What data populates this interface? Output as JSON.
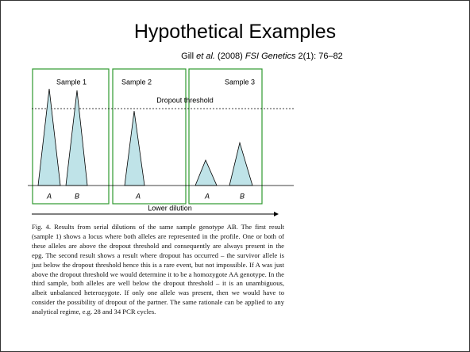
{
  "title": "Hypothetical Examples",
  "citation": [
    "Gill ",
    "et al.",
    " (2008) ",
    "FSI Genetics",
    " 2(1): 76–82"
  ],
  "figure": {
    "samples": [
      "Sample 1",
      "Sample 2",
      "Sample 3"
    ],
    "threshold_label": "Dropout threshold",
    "alleles": [
      "A",
      "B",
      "A",
      "A",
      "B"
    ],
    "arrow_label": "Lower dilution"
  },
  "caption": "Fig. 4. Results from serial dilutions of the same sample genotype AB. The first result (sample 1) shows a locus where both alleles are represented in the profile. One or both of these alleles are above the dropout threshold and consequently are always present in the epg. The second result shows a result where dropout has occurred – the survivor allele is just below the dropout threshold hence this is a rare event, but not impossible. If A was just above the dropout threshold we would determine it to be a homozygote AA genotype. In the third sample, both alleles are well below the dropout threshold – it is an unambiguous, albeit unbalanced heterozygote. If only one allele was present, then we would have to consider the possibility of dropout of the partner. The same rationale can be applied to any analytical regime, e.g. 28 and 34 PCR cycles."
}
